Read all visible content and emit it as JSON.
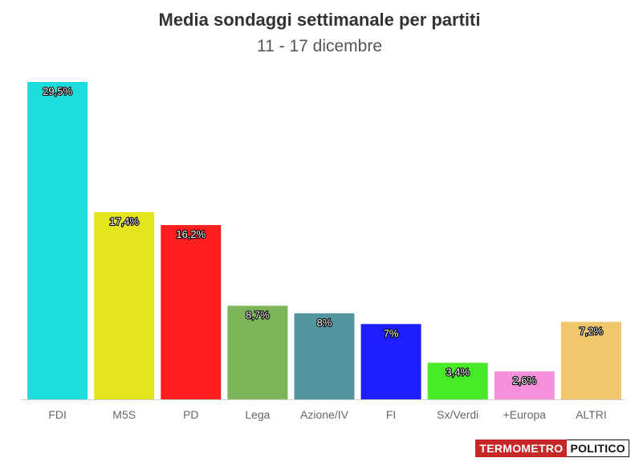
{
  "chart_data": {
    "type": "bar",
    "title": "Media sondaggi settimanale per partiti",
    "subtitle": "11 - 17 dicembre",
    "categories": [
      "FDI",
      "M5S",
      "PD",
      "Lega",
      "Azione/IV",
      "FI",
      "Sx/Verdi",
      "+Europa",
      "ALTRI"
    ],
    "values": [
      29.5,
      17.4,
      16.2,
      8.7,
      8,
      7,
      3.4,
      2.6,
      7.2
    ],
    "value_labels": [
      "29,5%",
      "17,4%",
      "16,2%",
      "8,7%",
      "8%",
      "7%",
      "3,4%",
      "2,6%",
      "7,2%"
    ],
    "colors": [
      "#1cdcdc",
      "#e5e51e",
      "#ff1e1e",
      "#7db65a",
      "#5295a0",
      "#1e1eff",
      "#48ea28",
      "#f590dc",
      "#f2c66b"
    ],
    "ylim": [
      0,
      29.5
    ],
    "grid": false,
    "legend": "none"
  },
  "brand": {
    "part1": "TERMOMETRO",
    "part2": "POLITICO"
  }
}
